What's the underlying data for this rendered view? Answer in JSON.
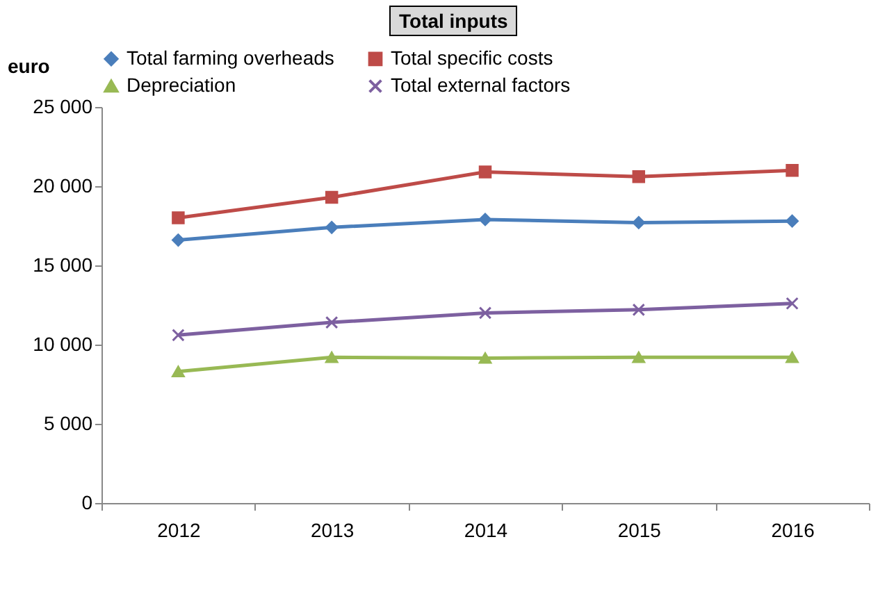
{
  "chart_data": {
    "type": "line",
    "title": "Total inputs",
    "ylabel": "euro",
    "categories": [
      "2012",
      "2013",
      "2014",
      "2015",
      "2016"
    ],
    "series": [
      {
        "name": "Total farming overheads",
        "color": "#4a7ebb",
        "marker": "diamond",
        "values": [
          16600,
          17400,
          17900,
          17700,
          17800
        ]
      },
      {
        "name": "Total specific costs",
        "color": "#be4b48",
        "marker": "square",
        "values": [
          18000,
          19300,
          20900,
          20600,
          21000
        ]
      },
      {
        "name": "Depreciation",
        "color": "#98b954",
        "marker": "triangle",
        "values": [
          8300,
          9200,
          9150,
          9200,
          9200
        ]
      },
      {
        "name": "Total external factors",
        "color": "#7d60a0",
        "marker": "cross",
        "values": [
          10600,
          11400,
          12000,
          12200,
          12600
        ]
      }
    ],
    "ylim": [
      0,
      25000
    ],
    "yticks": [
      0,
      {
        "value": 5000,
        "label": "5 000"
      },
      {
        "value": 10000,
        "label": "10 000"
      },
      {
        "value": 15000,
        "label": "15 000"
      },
      {
        "value": 20000,
        "label": "20 000"
      },
      {
        "value": 25000,
        "label": "25 000"
      }
    ],
    "legend": "top",
    "grid": false,
    "line_style": "solid"
  }
}
